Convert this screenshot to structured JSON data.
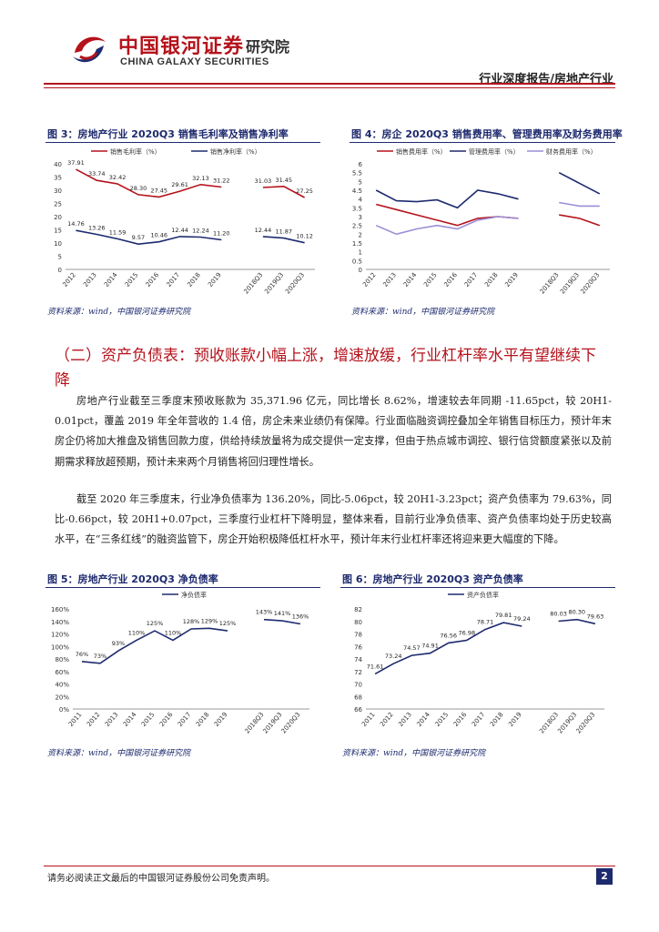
{
  "header": {
    "logo_cn": "中国银河证券",
    "logo_suffix": "研究院",
    "logo_en": "CHINA GALAXY SECURITIES",
    "report_type": "行业深度报告/房地产行业"
  },
  "section": {
    "title": "（二）资产负债表：预收账款小幅上涨，增速放缓，行业杠杆率水平有望继续下降",
    "para1": "房地产行业截至三季度末预收账款为 35,371.96 亿元，同比增长 8.62%，增速较去年同期 -11.65pct，较 20H1-0.01pct，覆盖 2019 年全年营收的 1.4 倍，房企未来业绩仍有保障。行业面临融资调控叠加全年销售目标压力，预计年末房企仍将加大推盘及销售回款力度，供给持续放量将为成交提供一定支撑，但由于热点城市调控、银行信贷额度紧张以及前期需求释放超预期，预计未来两个月销售将回归理性增长。",
    "para2": "截至 2020 年三季度末，行业净负债率为 136.20%，同比-5.06pct，较 20H1-3.23pct；资产负债率为 79.63%，同比-0.66pct，较 20H1+0.07pct，三季度行业杠杆下降明显，整体来看，目前行业净负债率、资产负债率均处于历史较高水平，在“三条红线”的融资监管下，房企开始积极降低杠杆水平，预计年末行业杠杆率还将迎来更大幅度的下降。"
  },
  "footer": {
    "disclaimer": "请务必阅读正文最后的中国银河证券股份公司免责声明。",
    "page": "2"
  },
  "chart_data": [
    {
      "id": "fig3",
      "type": "line",
      "figure_title": "图 3：房地产行业 2020Q3 销售毛利率及销售净利率",
      "source": "资料来源：wind，中国银河证券研究院",
      "categories": [
        "2012",
        "2013",
        "2014",
        "2015",
        "2016",
        "2017",
        "2018",
        "2019",
        "2018Q3",
        "2019Q3",
        "2020Q3"
      ],
      "series": [
        {
          "name": "销售毛利率（%）",
          "color": "#b5121b",
          "values": [
            37.91,
            33.74,
            32.42,
            28.3,
            27.45,
            29.61,
            32.13,
            31.22,
            31.03,
            31.45,
            27.25
          ]
        },
        {
          "name": "销售净利率（%）",
          "color": "#1e2a6e",
          "values": [
            14.76,
            13.26,
            11.59,
            9.57,
            10.46,
            12.44,
            12.24,
            11.2,
            12.44,
            11.87,
            10.12
          ]
        }
      ],
      "value_labels": [
        [
          "37.91",
          "33.74",
          "32.42",
          "28.30",
          "27.45",
          "29.61",
          "32.13",
          "31.22",
          "31.03",
          "31.45",
          "27.25"
        ],
        [
          "14.76",
          "13.26",
          "11.59",
          "9.57",
          "10.46",
          "12.44",
          "12.24",
          "11.20",
          "12.44",
          "11.87",
          "10.12"
        ]
      ],
      "ylim": [
        0,
        40
      ],
      "yticks": [
        "0",
        "5",
        "10",
        "15",
        "20",
        "25",
        "30",
        "35",
        "40"
      ]
    },
    {
      "id": "fig4",
      "type": "line",
      "figure_title": "图 4：房企 2020Q3 销售费用率、管理费用率及财务费用率",
      "source": "资料来源：wind，中国银河证券研究院",
      "categories": [
        "2012",
        "2013",
        "2014",
        "2015",
        "2016",
        "2017",
        "2018",
        "2019",
        "2018Q3",
        "2019Q3",
        "2020Q3"
      ],
      "series": [
        {
          "name": "销售费用率（%）",
          "color": "#b5121b",
          "values": [
            3.7,
            3.4,
            3.1,
            2.8,
            2.5,
            2.9,
            3.0,
            2.9,
            3.1,
            2.9,
            2.5
          ]
        },
        {
          "name": "管理费用率（%）",
          "color": "#1e2a6e",
          "values": [
            4.5,
            3.9,
            3.85,
            3.95,
            3.5,
            4.5,
            4.3,
            4.0,
            5.5,
            4.9,
            4.3
          ]
        },
        {
          "name": "财务费用率（%）",
          "color": "#9a8fd6",
          "values": [
            2.5,
            2.0,
            2.3,
            2.5,
            2.3,
            2.8,
            3.0,
            2.9,
            3.8,
            3.6,
            3.6
          ]
        }
      ],
      "ylim": [
        0,
        6
      ],
      "yticks": [
        "0",
        "0.5",
        "1",
        "1.5",
        "2",
        "2.5",
        "3",
        "3.5",
        "4",
        "4.5",
        "5",
        "5.5",
        "6"
      ]
    },
    {
      "id": "fig5",
      "type": "line",
      "figure_title": "图 5：房地产行业 2020Q3 净负债率",
      "source": "资料来源：wind，中国银河证券研究院",
      "categories": [
        "2011",
        "2012",
        "2013",
        "2014",
        "2015",
        "2016",
        "2017",
        "2018",
        "2019",
        "2018Q3",
        "2019Q3",
        "2020Q3"
      ],
      "series": [
        {
          "name": "净负债率",
          "color": "#1e2a6e",
          "values": [
            76,
            73,
            93,
            110,
            125,
            110,
            128,
            129,
            125,
            143,
            141,
            136
          ]
        }
      ],
      "value_labels": [
        [
          "76%",
          "73%",
          "93%",
          "110%",
          "125%",
          "110%",
          "128%",
          "129%",
          "125%",
          "143%",
          "141%",
          "136%"
        ]
      ],
      "ylim": [
        0,
        160
      ],
      "yticks": [
        "0%",
        "20%",
        "40%",
        "60%",
        "80%",
        "100%",
        "120%",
        "140%",
        "160%"
      ]
    },
    {
      "id": "fig6",
      "type": "line",
      "figure_title": "图 6：房地产行业 2020Q3 资产负债率",
      "source": "资料来源：wind，中国银河证券研究院",
      "categories": [
        "2011",
        "2012",
        "2013",
        "2014",
        "2015",
        "2016",
        "2017",
        "2018",
        "2019",
        "2018Q3",
        "2019Q3",
        "2020Q3"
      ],
      "series": [
        {
          "name": "资产负债率",
          "color": "#1e2a6e",
          "values": [
            71.61,
            73.24,
            74.57,
            74.91,
            76.56,
            76.98,
            78.71,
            79.81,
            79.24,
            80.03,
            80.3,
            79.63
          ]
        }
      ],
      "value_labels": [
        [
          "71.61",
          "73.24",
          "74.57",
          "74.91",
          "76.56",
          "76.98",
          "78.71",
          "79.81",
          "79.24",
          "80.03",
          "80.30",
          "79.63"
        ]
      ],
      "ylim": [
        66,
        82
      ],
      "yticks": [
        "66",
        "68",
        "70",
        "72",
        "74",
        "76",
        "78",
        "80",
        "82"
      ]
    }
  ]
}
